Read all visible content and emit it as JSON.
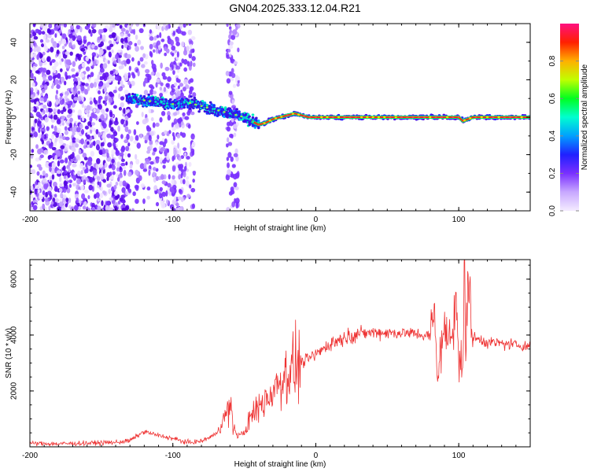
{
  "title": "GN04.2025.333.12.04.R21",
  "chart_data": [
    {
      "type": "heatmap",
      "name": "spectrogram",
      "xlabel": "Height of straight line (km)",
      "ylabel": "Frequency (Hz)",
      "xlim": [
        -200,
        150
      ],
      "ylim": [
        -50,
        50
      ],
      "x_ticks": [
        -200,
        -100,
        0,
        100
      ],
      "y_ticks": [
        -40,
        -20,
        0,
        20,
        40
      ],
      "colorbar": {
        "label": "Normalized spectral amplitude",
        "range": [
          0,
          1
        ],
        "ticks": [
          0,
          0.2,
          0.4,
          0.6,
          0.8
        ],
        "colormap": [
          "#ffffff",
          "#e8d8ff",
          "#a070ff",
          "#5000e0",
          "#0000ff",
          "#00ffff",
          "#00ff00",
          "#ffff00",
          "#ff8000",
          "#ff0000",
          "#ff0080"
        ]
      },
      "ridge": {
        "description": "dominant frequency track",
        "x": [
          -130,
          -120,
          -110,
          -100,
          -90,
          -80,
          -70,
          -60,
          -50,
          -45,
          -40,
          -35,
          -30,
          -20,
          -15,
          -10,
          -5,
          0,
          10,
          30,
          60,
          80,
          90,
          100,
          103,
          110,
          130,
          150
        ],
        "y": [
          10,
          9,
          8,
          7,
          8,
          6,
          4,
          2,
          0,
          -2,
          -4,
          -3,
          -1,
          1,
          2,
          1,
          0,
          0,
          0,
          0,
          0,
          0,
          0,
          0,
          -2,
          0,
          0,
          0
        ]
      },
      "noise_region": {
        "x_range": [
          -200,
          -50
        ],
        "description": "scattered low-amplitude noise"
      }
    },
    {
      "type": "line",
      "name": "snr",
      "xlabel": "Height of straight line (km)",
      "ylabel": "SNR (10 * v/v)",
      "xlim": [
        -200,
        150
      ],
      "ylim": [
        0,
        6700
      ],
      "x_ticks": [
        -200,
        -100,
        0,
        100
      ],
      "y_ticks": [
        2000,
        4000,
        6000
      ],
      "color": "#ee3333",
      "series": [
        {
          "name": "SNR",
          "x": [
            -200,
            -180,
            -160,
            -140,
            -130,
            -120,
            -110,
            -100,
            -90,
            -80,
            -70,
            -65,
            -60,
            -58,
            -55,
            -50,
            -45,
            -40,
            -35,
            -30,
            -25,
            -20,
            -15,
            -10,
            -5,
            0,
            5,
            10,
            15,
            20,
            25,
            30,
            40,
            50,
            60,
            70,
            80,
            83,
            85,
            88,
            90,
            95,
            97,
            98,
            100,
            103,
            104,
            105,
            106,
            110,
            120,
            130,
            140,
            150
          ],
          "y": [
            120,
            110,
            130,
            160,
            220,
            550,
            400,
            300,
            150,
            200,
            450,
            900,
            1500,
            800,
            400,
            500,
            1100,
            1400,
            1700,
            2000,
            2400,
            2650,
            2850,
            3000,
            3150,
            3300,
            3500,
            3700,
            3800,
            3900,
            4000,
            4050,
            4100,
            4080,
            4080,
            4050,
            3950,
            4800,
            2500,
            3800,
            4000,
            3900,
            5000,
            6200,
            2900,
            3000,
            6600,
            2300,
            6400,
            3900,
            3750,
            3700,
            3650,
            3600
          ]
        }
      ]
    }
  ]
}
